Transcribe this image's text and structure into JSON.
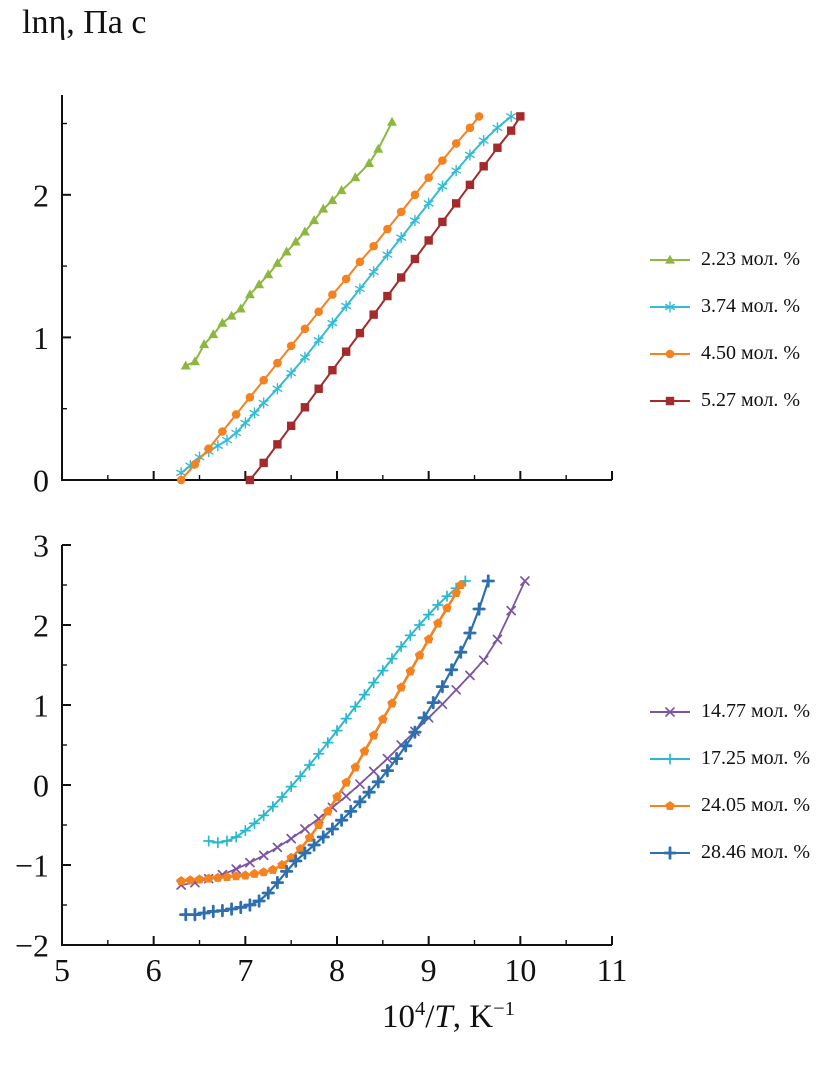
{
  "title": "lnη, Па с",
  "xaxis": {
    "base": "10",
    "exp": "4",
    "slash": "/",
    "variable": "T",
    "unit": ", K",
    "unit_exp": "−1"
  },
  "legend_position": "right",
  "chart_data": [
    {
      "type": "line",
      "panel": "top",
      "ylabel": "lnη, Па с",
      "xlabel": "",
      "xlim": [
        5,
        11
      ],
      "ylim": [
        0,
        2.7
      ],
      "xticks": [
        5,
        6,
        7,
        8,
        9,
        10,
        11
      ],
      "yticks": [
        0,
        1,
        2
      ],
      "show_x_tick_labels": false,
      "grid": false,
      "series": [
        {
          "name": "2.23 мол. %",
          "color": "#8CB842",
          "marker": "triangle",
          "lw": 2,
          "x": [
            6.35,
            6.45,
            6.55,
            6.65,
            6.75,
            6.85,
            6.95,
            7.05,
            7.15,
            7.25,
            7.35,
            7.45,
            7.55,
            7.65,
            7.75,
            7.85,
            7.95,
            8.05,
            8.2,
            8.35,
            8.45,
            8.6
          ],
          "y": [
            0.8,
            0.83,
            0.95,
            1.02,
            1.1,
            1.15,
            1.2,
            1.3,
            1.37,
            1.44,
            1.52,
            1.6,
            1.67,
            1.74,
            1.82,
            1.9,
            1.96,
            2.03,
            2.12,
            2.22,
            2.32,
            2.51
          ]
        },
        {
          "name": "3.74 мол. %",
          "color": "#35BCD4",
          "marker": "asterisk",
          "lw": 2,
          "x": [
            6.3,
            6.4,
            6.5,
            6.6,
            6.7,
            6.8,
            6.9,
            7.0,
            7.1,
            7.2,
            7.35,
            7.5,
            7.65,
            7.8,
            7.95,
            8.1,
            8.25,
            8.4,
            8.55,
            8.7,
            8.85,
            9.0,
            9.15,
            9.3,
            9.45,
            9.6,
            9.75,
            9.9
          ],
          "y": [
            0.05,
            0.1,
            0.16,
            0.2,
            0.24,
            0.28,
            0.33,
            0.4,
            0.47,
            0.54,
            0.64,
            0.75,
            0.86,
            0.98,
            1.1,
            1.22,
            1.34,
            1.46,
            1.58,
            1.7,
            1.82,
            1.94,
            2.06,
            2.17,
            2.28,
            2.38,
            2.47,
            2.55
          ]
        },
        {
          "name": "4.50 мол. %",
          "color": "#F58220",
          "marker": "circle",
          "lw": 2,
          "x": [
            6.3,
            6.45,
            6.6,
            6.75,
            6.9,
            7.05,
            7.2,
            7.35,
            7.5,
            7.65,
            7.8,
            7.95,
            8.1,
            8.25,
            8.4,
            8.55,
            8.7,
            8.85,
            9.0,
            9.15,
            9.3,
            9.45,
            9.55
          ],
          "y": [
            0.0,
            0.11,
            0.22,
            0.34,
            0.46,
            0.58,
            0.7,
            0.82,
            0.94,
            1.06,
            1.18,
            1.3,
            1.41,
            1.53,
            1.64,
            1.76,
            1.88,
            2.0,
            2.12,
            2.24,
            2.36,
            2.47,
            2.55
          ]
        },
        {
          "name": "5.27 мол. %",
          "color": "#A32B2B",
          "marker": "square",
          "lw": 2,
          "x": [
            7.05,
            7.2,
            7.35,
            7.5,
            7.65,
            7.8,
            7.95,
            8.1,
            8.25,
            8.4,
            8.55,
            8.7,
            8.85,
            9.0,
            9.15,
            9.3,
            9.45,
            9.6,
            9.75,
            9.9,
            10.0
          ],
          "y": [
            0.0,
            0.12,
            0.25,
            0.38,
            0.51,
            0.64,
            0.77,
            0.9,
            1.03,
            1.16,
            1.29,
            1.42,
            1.55,
            1.68,
            1.81,
            1.94,
            2.07,
            2.2,
            2.33,
            2.45,
            2.55
          ]
        }
      ]
    },
    {
      "type": "line",
      "panel": "bottom",
      "ylabel": "lnη, Па с",
      "xlabel": "10⁴/T, K⁻¹",
      "xlim": [
        5,
        11
      ],
      "ylim": [
        -2,
        3
      ],
      "xticks": [
        5,
        6,
        7,
        8,
        9,
        10,
        11
      ],
      "yticks": [
        -2,
        -1,
        0,
        1,
        2,
        3
      ],
      "show_x_tick_labels": true,
      "grid": false,
      "series": [
        {
          "name": "14.77 мол. %",
          "color": "#7C55A2",
          "marker": "x",
          "lw": 1.8,
          "x": [
            6.3,
            6.45,
            6.6,
            6.75,
            6.9,
            7.05,
            7.2,
            7.35,
            7.5,
            7.65,
            7.8,
            7.95,
            8.1,
            8.25,
            8.4,
            8.55,
            8.7,
            8.85,
            9.0,
            9.15,
            9.3,
            9.45,
            9.6,
            9.75,
            9.9,
            10.05
          ],
          "y": [
            -1.25,
            -1.22,
            -1.17,
            -1.12,
            -1.05,
            -0.97,
            -0.88,
            -0.78,
            -0.67,
            -0.55,
            -0.42,
            -0.28,
            -0.14,
            0.01,
            0.17,
            0.33,
            0.5,
            0.67,
            0.84,
            1.01,
            1.19,
            1.37,
            1.56,
            1.82,
            2.18,
            2.55
          ]
        },
        {
          "name": "17.25 мол. %",
          "color": "#2BB8CE",
          "marker": "plus",
          "lw": 2,
          "x": [
            6.6,
            6.7,
            6.8,
            6.9,
            7.0,
            7.1,
            7.2,
            7.3,
            7.4,
            7.5,
            7.6,
            7.7,
            7.8,
            7.9,
            8.0,
            8.1,
            8.2,
            8.3,
            8.4,
            8.5,
            8.6,
            8.7,
            8.8,
            8.9,
            9.0,
            9.1,
            9.2,
            9.3,
            9.4
          ],
          "y": [
            -0.7,
            -0.72,
            -0.7,
            -0.65,
            -0.57,
            -0.48,
            -0.38,
            -0.27,
            -0.15,
            -0.02,
            0.11,
            0.25,
            0.39,
            0.53,
            0.68,
            0.83,
            0.98,
            1.13,
            1.28,
            1.43,
            1.58,
            1.73,
            1.87,
            2.0,
            2.13,
            2.25,
            2.36,
            2.46,
            2.55
          ]
        },
        {
          "name": "24.05 мол. %",
          "color": "#F58220",
          "marker": "pentagon",
          "lw": 2.6,
          "x": [
            6.3,
            6.4,
            6.5,
            6.6,
            6.7,
            6.8,
            6.9,
            7.0,
            7.1,
            7.2,
            7.3,
            7.4,
            7.5,
            7.6,
            7.7,
            7.8,
            7.9,
            8.0,
            8.1,
            8.2,
            8.3,
            8.4,
            8.5,
            8.6,
            8.7,
            8.8,
            8.9,
            9.0,
            9.1,
            9.2,
            9.3,
            9.35
          ],
          "y": [
            -1.2,
            -1.19,
            -1.18,
            -1.17,
            -1.16,
            -1.15,
            -1.14,
            -1.13,
            -1.11,
            -1.09,
            -1.06,
            -1.0,
            -0.91,
            -0.8,
            -0.66,
            -0.5,
            -0.33,
            -0.15,
            0.03,
            0.22,
            0.42,
            0.62,
            0.82,
            1.02,
            1.22,
            1.42,
            1.62,
            1.82,
            2.02,
            2.21,
            2.4,
            2.5
          ]
        },
        {
          "name": "28.46 мол. %",
          "color": "#2E6FAE",
          "marker": "plus-bold",
          "lw": 2.2,
          "x": [
            6.35,
            6.45,
            6.55,
            6.65,
            6.75,
            6.85,
            6.95,
            7.05,
            7.15,
            7.25,
            7.35,
            7.45,
            7.55,
            7.65,
            7.75,
            7.85,
            7.95,
            8.05,
            8.15,
            8.25,
            8.35,
            8.45,
            8.55,
            8.65,
            8.75,
            8.85,
            8.95,
            9.05,
            9.15,
            9.25,
            9.35,
            9.45,
            9.55,
            9.65
          ],
          "y": [
            -1.62,
            -1.62,
            -1.6,
            -1.58,
            -1.57,
            -1.55,
            -1.53,
            -1.5,
            -1.45,
            -1.35,
            -1.22,
            -1.08,
            -0.95,
            -0.85,
            -0.75,
            -0.65,
            -0.55,
            -0.44,
            -0.33,
            -0.21,
            -0.09,
            0.04,
            0.18,
            0.33,
            0.49,
            0.66,
            0.84,
            1.03,
            1.23,
            1.44,
            1.66,
            1.9,
            2.2,
            2.55
          ]
        }
      ]
    }
  ]
}
